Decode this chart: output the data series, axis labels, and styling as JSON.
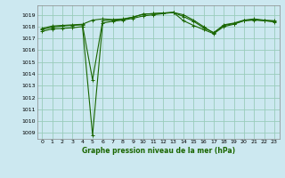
{
  "title": "Graphe pression niveau de la mer (hPa)",
  "background_color": "#cce8f0",
  "grid_color": "#99ccbb",
  "line_color": "#1a6600",
  "xlim": [
    -0.5,
    23.5
  ],
  "ylim": [
    1008.5,
    1019.8
  ],
  "yticks": [
    1009,
    1010,
    1011,
    1012,
    1013,
    1014,
    1015,
    1016,
    1017,
    1018,
    1019
  ],
  "xticks": [
    0,
    1,
    2,
    3,
    4,
    5,
    6,
    7,
    8,
    9,
    10,
    11,
    12,
    13,
    14,
    15,
    16,
    17,
    18,
    19,
    20,
    21,
    22,
    23
  ],
  "series": [
    [
      1017.6,
      1017.8,
      1017.85,
      1017.9,
      1018.0,
      1008.8,
      1018.3,
      1018.45,
      1018.55,
      1018.7,
      1018.9,
      1019.0,
      1019.1,
      1019.2,
      1018.5,
      1018.1,
      1017.75,
      1017.4,
      1018.0,
      1018.2,
      1018.5,
      1018.55,
      1018.5,
      1018.4
    ],
    [
      1017.75,
      1017.95,
      1018.05,
      1018.1,
      1018.15,
      1013.5,
      1018.5,
      1018.55,
      1018.6,
      1018.8,
      1019.05,
      1019.1,
      1019.15,
      1019.2,
      1018.85,
      1018.45,
      1017.9,
      1017.5,
      1018.1,
      1018.25,
      1018.5,
      1018.6,
      1018.5,
      1018.45
    ],
    [
      1017.85,
      1018.05,
      1018.1,
      1018.15,
      1018.2,
      1018.55,
      1018.65,
      1018.6,
      1018.65,
      1018.8,
      1019.05,
      1019.1,
      1019.15,
      1019.2,
      1019.0,
      1018.55,
      1018.0,
      1017.45,
      1018.15,
      1018.3,
      1018.55,
      1018.65,
      1018.55,
      1018.5
    ]
  ]
}
